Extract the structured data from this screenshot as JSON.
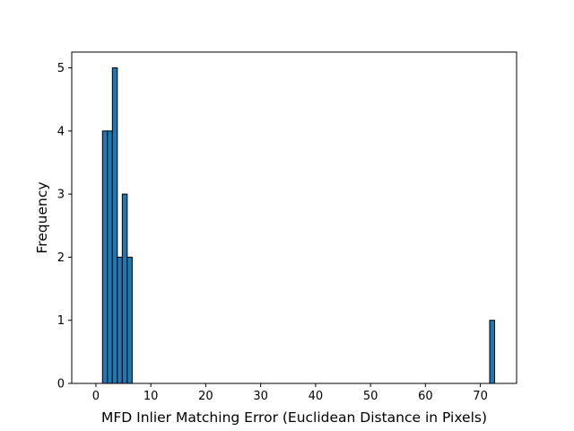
{
  "chart_data": {
    "type": "histogram",
    "xlabel": "MFD Inlier Matching Error (Euclidean Distance in Pixels)",
    "ylabel": "Frequency",
    "xlim": [
      -4.4,
      76.6
    ],
    "ylim": [
      0,
      5.25
    ],
    "xticks": [
      0,
      10,
      20,
      30,
      40,
      50,
      60,
      70
    ],
    "yticks": [
      0,
      1,
      2,
      3,
      4,
      5
    ],
    "bar_color": "#1f77b4",
    "edge_color": "#000000",
    "grid": false,
    "bins": [
      {
        "x0": 1.2,
        "x1": 2.1,
        "count": 4
      },
      {
        "x0": 2.1,
        "x1": 3.0,
        "count": 4
      },
      {
        "x0": 3.0,
        "x1": 3.9,
        "count": 5
      },
      {
        "x0": 3.9,
        "x1": 4.8,
        "count": 2
      },
      {
        "x0": 4.8,
        "x1": 5.7,
        "count": 3
      },
      {
        "x0": 5.7,
        "x1": 6.6,
        "count": 2
      },
      {
        "x0": 71.7,
        "x1": 72.6,
        "count": 1
      }
    ]
  }
}
